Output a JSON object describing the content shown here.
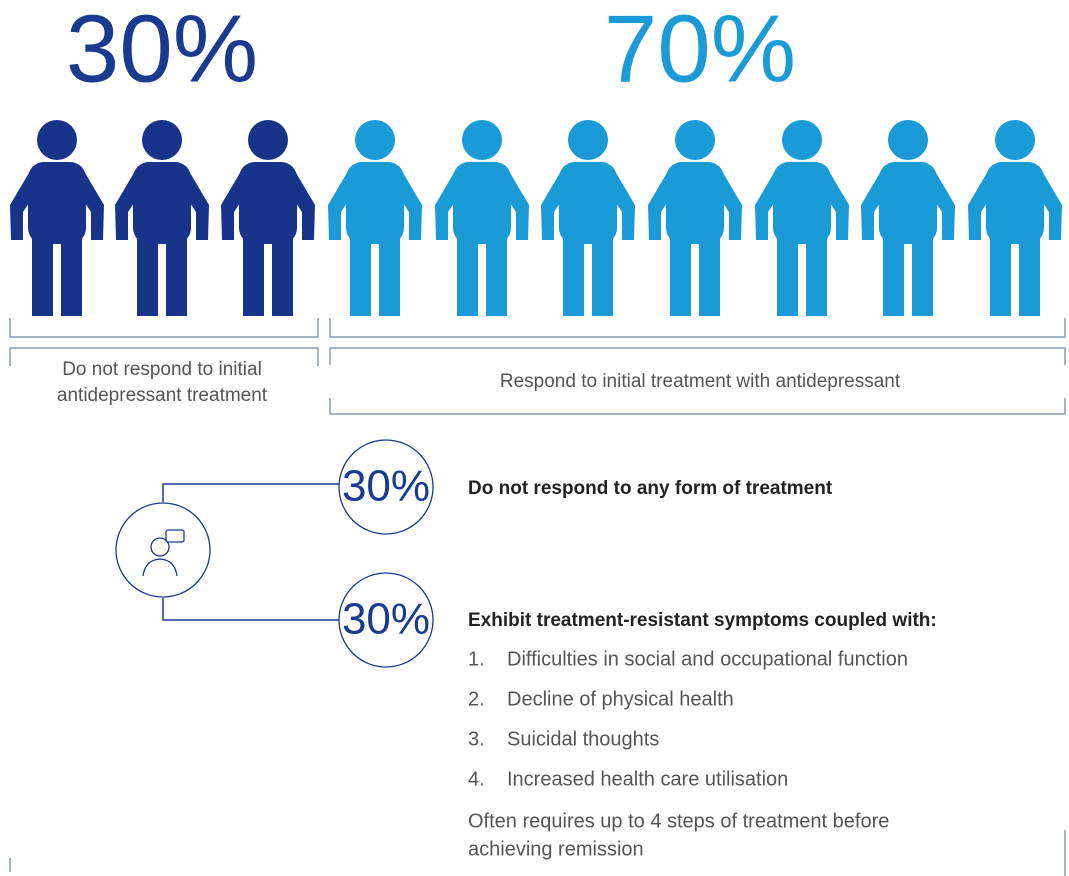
{
  "top": {
    "left_percent": "30%",
    "right_percent": "70%",
    "left_label": [
      "Do not respond to initial",
      "antidepressant treatment"
    ],
    "right_label": "Respond to initial treatment with antidepressant"
  },
  "branches": [
    {
      "percent": "30%",
      "title": "Do not respond to any form of treatment"
    },
    {
      "percent": "30%",
      "title": "Exhibit treatment-resistant symptoms coupled with:",
      "items": [
        {
          "number": "1.",
          "text": "Difficulties in social and occupational function"
        },
        {
          "number": "2.",
          "text": "Decline of physical health"
        },
        {
          "number": "3.",
          "text": "Suicidal thoughts"
        },
        {
          "number": "4.",
          "text": "Increased health care utilisation"
        }
      ],
      "note": [
        "Often requires up to 4 steps of treatment before",
        "achieving remission"
      ]
    }
  ]
}
